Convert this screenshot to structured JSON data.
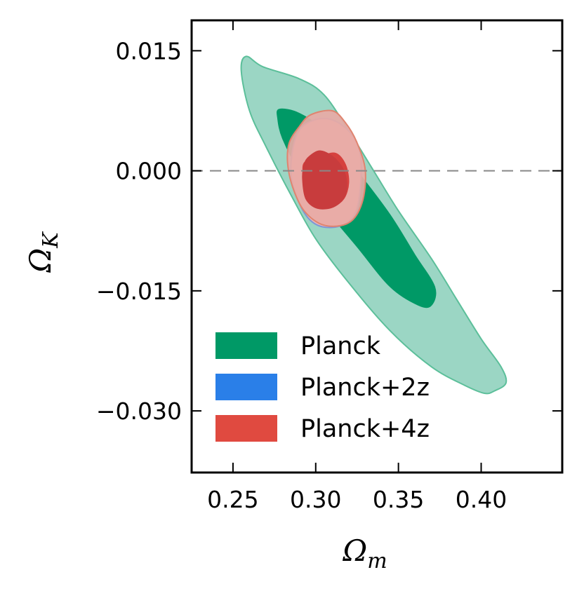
{
  "chart_data": {
    "type": "contour",
    "title": "",
    "xlabel_main": "Ω",
    "xlabel_sub": "m",
    "ylabel_main": "Ω",
    "ylabel_sub": "K",
    "xlim": [
      0.225,
      0.449
    ],
    "ylim": [
      -0.0377,
      0.0188
    ],
    "xticks": [
      0.25,
      0.3,
      0.35,
      0.4
    ],
    "xtick_labels": [
      "0.25",
      "0.30",
      "0.35",
      "0.40"
    ],
    "yticks": [
      0.015,
      0.0,
      -0.015,
      -0.03
    ],
    "ytick_labels": [
      "0.015",
      "0.000",
      "−0.015",
      "−0.030"
    ],
    "reference_line": {
      "y": 0.0,
      "style": "dashed",
      "color": "#888888"
    },
    "legend": {
      "position": "lower-left",
      "entries": [
        {
          "label": "Planck",
          "color": "#009966"
        },
        {
          "label": "Planck+2z",
          "color": "#2a7fe8"
        },
        {
          "label": "Planck+4z",
          "color": "#e04a40"
        }
      ]
    },
    "series": [
      {
        "name": "Planck",
        "contours": [
          {
            "level": "95%",
            "color": "#9bd6c4",
            "edge": "#5cbf9a",
            "points": [
              [
                0.258,
                0.0143
              ],
              [
                0.268,
                0.013
              ],
              [
                0.29,
                0.0115
              ],
              [
                0.305,
                0.0095
              ],
              [
                0.32,
                0.005
              ],
              [
                0.335,
                0.0
              ],
              [
                0.35,
                -0.005
              ],
              [
                0.37,
                -0.011
              ],
              [
                0.385,
                -0.016
              ],
              [
                0.4,
                -0.021
              ],
              [
                0.412,
                -0.0245
              ],
              [
                0.415,
                -0.0265
              ],
              [
                0.408,
                -0.0275
              ],
              [
                0.402,
                -0.0278
              ],
              [
                0.39,
                -0.0268
              ],
              [
                0.37,
                -0.0245
              ],
              [
                0.345,
                -0.02
              ],
              [
                0.32,
                -0.014
              ],
              [
                0.3,
                -0.0085
              ],
              [
                0.285,
                -0.003
              ],
              [
                0.27,
                0.003
              ],
              [
                0.26,
                0.0075
              ],
              [
                0.255,
                0.0125
              ]
            ]
          },
          {
            "level": "68%",
            "color": "#009966",
            "edge": "#009966",
            "points": [
              [
                0.278,
                0.0077
              ],
              [
                0.29,
                0.0072
              ],
              [
                0.305,
                0.005
              ],
              [
                0.325,
                0.0
              ],
              [
                0.345,
                -0.0055
              ],
              [
                0.36,
                -0.0105
              ],
              [
                0.372,
                -0.0145
              ],
              [
                0.37,
                -0.0168
              ],
              [
                0.362,
                -0.0168
              ],
              [
                0.345,
                -0.0145
              ],
              [
                0.325,
                -0.0095
              ],
              [
                0.305,
                -0.0045
              ],
              [
                0.29,
                0.0
              ],
              [
                0.28,
                0.004
              ],
              [
                0.277,
                0.0065
              ]
            ]
          }
        ]
      },
      {
        "name": "Planck+2z",
        "contours": [
          {
            "level": "95%",
            "color": "#ecb9b9",
            "edge": "#7f95d6",
            "points": [
              [
                0.302,
                0.0065
              ],
              [
                0.312,
                0.0062
              ],
              [
                0.322,
                0.0045
              ],
              [
                0.327,
                0.002
              ],
              [
                0.327,
                -0.002
              ],
              [
                0.324,
                -0.0052
              ],
              [
                0.316,
                -0.0068
              ],
              [
                0.304,
                -0.007
              ],
              [
                0.295,
                -0.0058
              ],
              [
                0.288,
                -0.003
              ],
              [
                0.285,
                0.0
              ],
              [
                0.287,
                0.0035
              ],
              [
                0.292,
                0.0055
              ]
            ]
          }
        ]
      },
      {
        "name": "Planck+4z",
        "contours": [
          {
            "level": "95%",
            "color": "#e8aaa5",
            "edge": "#e0846f",
            "points": [
              [
                0.297,
                0.007
              ],
              [
                0.31,
                0.0075
              ],
              [
                0.318,
                0.006
              ],
              [
                0.325,
                0.0035
              ],
              [
                0.33,
                0.0
              ],
              [
                0.328,
                -0.004
              ],
              [
                0.32,
                -0.0065
              ],
              [
                0.305,
                -0.0068
              ],
              [
                0.293,
                -0.005
              ],
              [
                0.286,
                -0.002
              ],
              [
                0.283,
                0.001
              ],
              [
                0.284,
                0.0035
              ],
              [
                0.29,
                0.0055
              ]
            ]
          },
          {
            "level": "68%",
            "color": "#d6413e",
            "edge": "#d6413e",
            "points": [
              [
                0.303,
                0.0018
              ],
              [
                0.312,
                0.0022
              ],
              [
                0.318,
                0.0008
              ],
              [
                0.32,
                -0.0015
              ],
              [
                0.317,
                -0.0035
              ],
              [
                0.31,
                -0.0045
              ],
              [
                0.302,
                -0.0045
              ],
              [
                0.296,
                -0.003
              ],
              [
                0.293,
                -0.001
              ],
              [
                0.293,
                0.001
              ]
            ]
          },
          {
            "level": "68%-inner",
            "color": "#c83c3d",
            "edge": "#c83c3d",
            "points": [
              [
                0.296,
                0.0018
              ],
              [
                0.303,
                0.0025
              ],
              [
                0.312,
                0.0015
              ],
              [
                0.318,
                -0.0005
              ],
              [
                0.318,
                -0.003
              ],
              [
                0.311,
                -0.0045
              ],
              [
                0.301,
                -0.0047
              ],
              [
                0.294,
                -0.0035
              ],
              [
                0.292,
                -0.001
              ],
              [
                0.293,
                0.0008
              ]
            ]
          }
        ]
      }
    ]
  }
}
